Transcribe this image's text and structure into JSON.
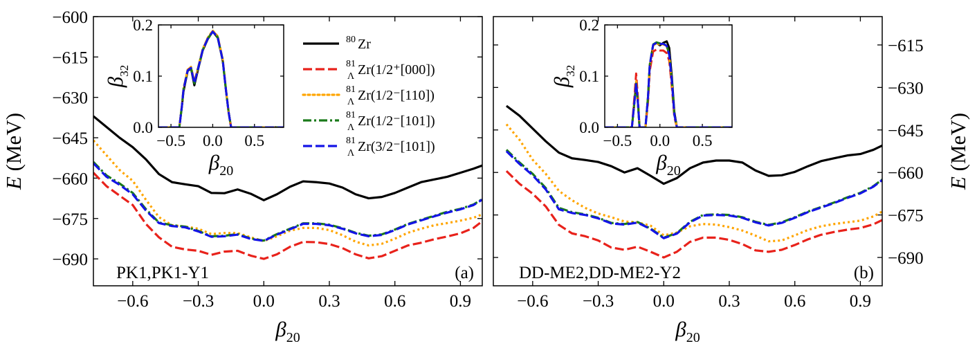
{
  "chart_data": {
    "type": "line",
    "legend": {
      "entries": [
        {
          "key": "zr80",
          "mass": "80",
          "lambda": "",
          "text": "Zr",
          "color": "#000000",
          "dash": "solid"
        },
        {
          "key": "s000",
          "mass": "81",
          "lambda": "Λ",
          "text": "Zr(1/2⁺[000])",
          "color": "#e8221b",
          "dash": "dashed"
        },
        {
          "key": "p110",
          "mass": "81",
          "lambda": "Λ",
          "text": "Zr(1/2⁻[110])",
          "color": "#ffa500",
          "dash": "dotted"
        },
        {
          "key": "p101",
          "mass": "81",
          "lambda": "Λ",
          "text": "Zr(1/2⁻[101])",
          "color": "#1a7a1a",
          "dash": "dashdot"
        },
        {
          "key": "p3101",
          "mass": "81",
          "lambda": "Λ",
          "text": "Zr(3/2⁻[101])",
          "color": "#1414e6",
          "dash": "dashed"
        }
      ]
    },
    "panels": [
      {
        "id": "a",
        "label": "(a)",
        "model_label": "PK1,PK1-Y1",
        "xlabel": "β20",
        "ylabel": "E (MeV)",
        "ylabel_side": "left",
        "xlim": [
          -0.78,
          1.0
        ],
        "ylim": [
          -700,
          -600
        ],
        "xticks": [
          "−0.6",
          "−0.3",
          "0.0",
          "0.3",
          "0.6",
          "0.9"
        ],
        "yticks": [
          "−600",
          "−615",
          "−630",
          "−645",
          "−660",
          "−675",
          "−690"
        ],
        "x": [
          -0.78,
          -0.72,
          -0.66,
          -0.6,
          -0.54,
          -0.48,
          -0.42,
          -0.36,
          -0.3,
          -0.24,
          -0.18,
          -0.12,
          -0.06,
          0.0,
          0.06,
          0.12,
          0.18,
          0.24,
          0.3,
          0.36,
          0.42,
          0.48,
          0.54,
          0.6,
          0.66,
          0.72,
          0.78,
          0.84,
          0.9,
          0.96,
          1.0
        ],
        "series": [
          {
            "key": "zr80",
            "values": [
              -637,
              -641,
              -645,
              -648.5,
              -653,
              -658.5,
              -661.5,
              -662.3,
              -663,
              -665.5,
              -665.6,
              -664.2,
              -665.8,
              -668.2,
              -666,
              -663.2,
              -661.2,
              -661.5,
              -662,
              -663.5,
              -666,
              -667.5,
              -667,
              -665.5,
              -663.5,
              -661.5,
              -660.5,
              -659.5,
              -658,
              -656.5,
              -655.3
            ]
          },
          {
            "key": "s000",
            "values": [
              -658,
              -663,
              -666.5,
              -670,
              -677,
              -682,
              -685.5,
              -686.5,
              -687,
              -688.5,
              -687.3,
              -687,
              -688.8,
              -690,
              -688.3,
              -685.5,
              -683.7,
              -683.8,
              -684.5,
              -686,
              -688.3,
              -689.8,
              -689,
              -687,
              -685,
              -684,
              -682.7,
              -681.7,
              -680.5,
              -678.5,
              -676
            ]
          },
          {
            "key": "p110",
            "values": [
              -646,
              -651.5,
              -657,
              -661,
              -668,
              -674.5,
              -677.5,
              -678,
              -678.8,
              -680.8,
              -680.4,
              -680.4,
              -682,
              -683.4,
              -681.6,
              -679.5,
              -678.5,
              -678.5,
              -679.3,
              -681.2,
              -683.6,
              -685,
              -684.4,
              -682.5,
              -680.3,
              -678.8,
              -677.5,
              -676.7,
              -675.8,
              -674.7,
              -673.5
            ]
          },
          {
            "key": "p101",
            "values": [
              -654,
              -659,
              -662,
              -665.5,
              -671.5,
              -676.5,
              -677.5,
              -678,
              -679.6,
              -681.6,
              -681.4,
              -680.8,
              -682.4,
              -683.2,
              -680.8,
              -678.8,
              -676.8,
              -676.8,
              -677.3,
              -678.6,
              -680.3,
              -681.4,
              -680.9,
              -679.1,
              -677,
              -675.5,
              -674,
              -672.5,
              -671.4,
              -669.8,
              -667.8
            ]
          },
          {
            "key": "p3101",
            "values": [
              -654.5,
              -659.5,
              -662.5,
              -666,
              -672,
              -676.7,
              -677.8,
              -678.3,
              -679.8,
              -681.8,
              -681.6,
              -681,
              -682.6,
              -683.3,
              -681,
              -679,
              -677,
              -677,
              -677.5,
              -678.8,
              -680.5,
              -681.6,
              -681.1,
              -679.3,
              -677.2,
              -675.7,
              -674.2,
              -672.8,
              -671.6,
              -670,
              -668
            ]
          }
        ],
        "inset": {
          "xlabel": "β20",
          "ylabel": "β32",
          "xlim": [
            -0.65,
            0.85
          ],
          "ylim": [
            0,
            0.2
          ],
          "xticks": [
            "−0.5",
            "0.0",
            "0.5"
          ],
          "yticks": [
            "0.0",
            "0.1",
            "0.2"
          ],
          "x": [
            -0.65,
            -0.4,
            -0.37,
            -0.35,
            -0.3,
            -0.26,
            -0.22,
            -0.18,
            -0.12,
            -0.06,
            0.0,
            0.06,
            0.12,
            0.16,
            0.19,
            0.22,
            0.3,
            0.85
          ],
          "series": [
            {
              "key": "zr80",
              "values": [
                0,
                0,
                0.04,
                0.07,
                0.11,
                0.115,
                0.082,
                0.11,
                0.15,
                0.172,
                0.187,
                0.175,
                0.13,
                0.07,
                0.03,
                0,
                0,
                0
              ]
            },
            {
              "key": "s000",
              "values": [
                0,
                0,
                0.04,
                0.075,
                0.112,
                0.118,
                0.088,
                0.113,
                0.152,
                0.174,
                0.188,
                0.177,
                0.132,
                0.072,
                0.03,
                0,
                0,
                0
              ]
            },
            {
              "key": "p110",
              "values": [
                0,
                0,
                0.042,
                0.076,
                0.113,
                0.118,
                0.088,
                0.114,
                0.153,
                0.175,
                0.189,
                0.178,
                0.133,
                0.073,
                0.03,
                0,
                0,
                0
              ]
            },
            {
              "key": "p101",
              "values": [
                0,
                0,
                0.04,
                0.074,
                0.111,
                0.116,
                0.086,
                0.112,
                0.151,
                0.173,
                0.187,
                0.176,
                0.131,
                0.071,
                0.03,
                0,
                0,
                0
              ]
            },
            {
              "key": "p3101",
              "values": [
                0,
                0,
                0.04,
                0.074,
                0.111,
                0.116,
                0.086,
                0.112,
                0.151,
                0.173,
                0.187,
                0.176,
                0.131,
                0.071,
                0.03,
                0,
                0,
                0
              ]
            }
          ]
        }
      },
      {
        "id": "b",
        "label": "(b)",
        "model_label": "DD-ME2,DD-ME2-Y2",
        "xlabel": "β20",
        "ylabel": "E (MeV)",
        "ylabel_side": "right",
        "xlim": [
          -0.78,
          1.0
        ],
        "ylim": [
          -700,
          -605
        ],
        "xticks": [
          "−0.6",
          "−0.3",
          "0.0",
          "0.3",
          "0.6",
          "0.9"
        ],
        "yticks": [
          "−615",
          "−630",
          "−645",
          "−660",
          "−675",
          "−690"
        ],
        "x": [
          -0.72,
          -0.66,
          -0.6,
          -0.54,
          -0.48,
          -0.42,
          -0.36,
          -0.3,
          -0.24,
          -0.18,
          -0.12,
          -0.06,
          0.0,
          0.06,
          0.12,
          0.18,
          0.24,
          0.3,
          0.36,
          0.42,
          0.48,
          0.54,
          0.6,
          0.66,
          0.72,
          0.78,
          0.84,
          0.9,
          0.96,
          1.0
        ],
        "series": [
          {
            "key": "zr80",
            "values": [
              -636.5,
              -640,
              -644.5,
              -649,
              -653,
              -655,
              -655.6,
              -656.3,
              -657.8,
              -660,
              -658.5,
              -661.2,
              -664,
              -662,
              -658.5,
              -656.5,
              -655.8,
              -655.8,
              -656.5,
              -659.3,
              -661.2,
              -661,
              -659.8,
              -657.8,
              -656,
              -655,
              -654,
              -653.5,
              -652,
              -650.5
            ]
          },
          {
            "key": "s000",
            "values": [
              -659.5,
              -664,
              -667.5,
              -672,
              -678.5,
              -681.5,
              -682.5,
              -684,
              -686.5,
              -687.3,
              -686.2,
              -688,
              -690,
              -688,
              -684.5,
              -683,
              -683,
              -683.8,
              -685.3,
              -687.5,
              -688,
              -687.3,
              -685.6,
              -683.6,
              -682,
              -681,
              -680.2,
              -679.6,
              -678.3,
              -676.8
            ]
          },
          {
            "key": "p110",
            "values": [
              -643,
              -648.5,
              -655.5,
              -660.5,
              -666.5,
              -669.8,
              -672.5,
              -674.5,
              -675.8,
              -677.3,
              -677.6,
              -678.8,
              -682.2,
              -681.2,
              -679,
              -678.2,
              -678.4,
              -679.3,
              -680.5,
              -682.3,
              -684.3,
              -684,
              -682.2,
              -680.3,
              -679,
              -678.2,
              -677.6,
              -677,
              -675.5,
              -673.8
            ]
          },
          {
            "key": "p101",
            "values": [
              -652,
              -656.5,
              -660.5,
              -665.5,
              -672.5,
              -674,
              -674.8,
              -676,
              -677.8,
              -678.2,
              -677.5,
              -679.8,
              -683,
              -681.4,
              -677.4,
              -675,
              -674.8,
              -675,
              -675.8,
              -677.4,
              -678.5,
              -677.6,
              -675.8,
              -673.8,
              -672.2,
              -670.6,
              -668.8,
              -667.2,
              -664.8,
              -662.5
            ]
          },
          {
            "key": "p3101",
            "values": [
              -652.5,
              -657,
              -661,
              -666,
              -673,
              -674.3,
              -675,
              -676.2,
              -678,
              -678.4,
              -677.7,
              -680,
              -683.2,
              -681.6,
              -677.6,
              -675.2,
              -675,
              -675.2,
              -676,
              -677.6,
              -678.7,
              -677.8,
              -676,
              -674,
              -672.4,
              -670.8,
              -669,
              -667.4,
              -665,
              -662.7
            ]
          }
        ],
        "inset": {
          "xlabel": "β20",
          "ylabel": "β32",
          "xlim": [
            -0.65,
            0.85
          ],
          "ylim": [
            0,
            0.2
          ],
          "xticks": [
            "−0.5",
            "0.0",
            "0.5"
          ],
          "yticks": [
            "0.0",
            "0.1",
            "0.2"
          ],
          "x": [
            -0.65,
            -0.33,
            -0.3,
            -0.28,
            -0.26,
            -0.24,
            -0.2,
            -0.17,
            -0.14,
            -0.12,
            -0.08,
            -0.04,
            0.0,
            0.04,
            0.08,
            0.11,
            0.14,
            0.17,
            0.2,
            0.85
          ],
          "series": [
            {
              "key": "zr80",
              "values": [
                0,
                0,
                0.05,
                0.085,
                0.05,
                0,
                0,
                0,
                0.06,
                0.12,
                0.16,
                0.165,
                0.16,
                0.165,
                0.168,
                0.155,
                0.1,
                0.03,
                0,
                0
              ]
            },
            {
              "key": "s000",
              "values": [
                0,
                0,
                0.06,
                0.105,
                0.06,
                0,
                0,
                0,
                0.05,
                0.11,
                0.148,
                0.152,
                0.15,
                0.15,
                0.145,
                0.13,
                0.08,
                0.02,
                0,
                0
              ]
            },
            {
              "key": "p110",
              "values": [
                0,
                0,
                0.05,
                0.09,
                0.05,
                0,
                0,
                0,
                0.06,
                0.12,
                0.16,
                0.164,
                0.162,
                0.162,
                0.158,
                0.14,
                0.09,
                0.025,
                0,
                0
              ]
            },
            {
              "key": "p101",
              "values": [
                0,
                0,
                0.05,
                0.088,
                0.05,
                0,
                0,
                0,
                0.06,
                0.122,
                0.162,
                0.166,
                0.164,
                0.164,
                0.16,
                0.142,
                0.092,
                0.025,
                0,
                0
              ]
            },
            {
              "key": "p3101",
              "values": [
                0,
                0,
                0.05,
                0.086,
                0.05,
                0,
                0,
                0,
                0.06,
                0.121,
                0.161,
                0.165,
                0.163,
                0.163,
                0.159,
                0.141,
                0.091,
                0.025,
                0,
                0
              ]
            }
          ]
        }
      }
    ]
  }
}
